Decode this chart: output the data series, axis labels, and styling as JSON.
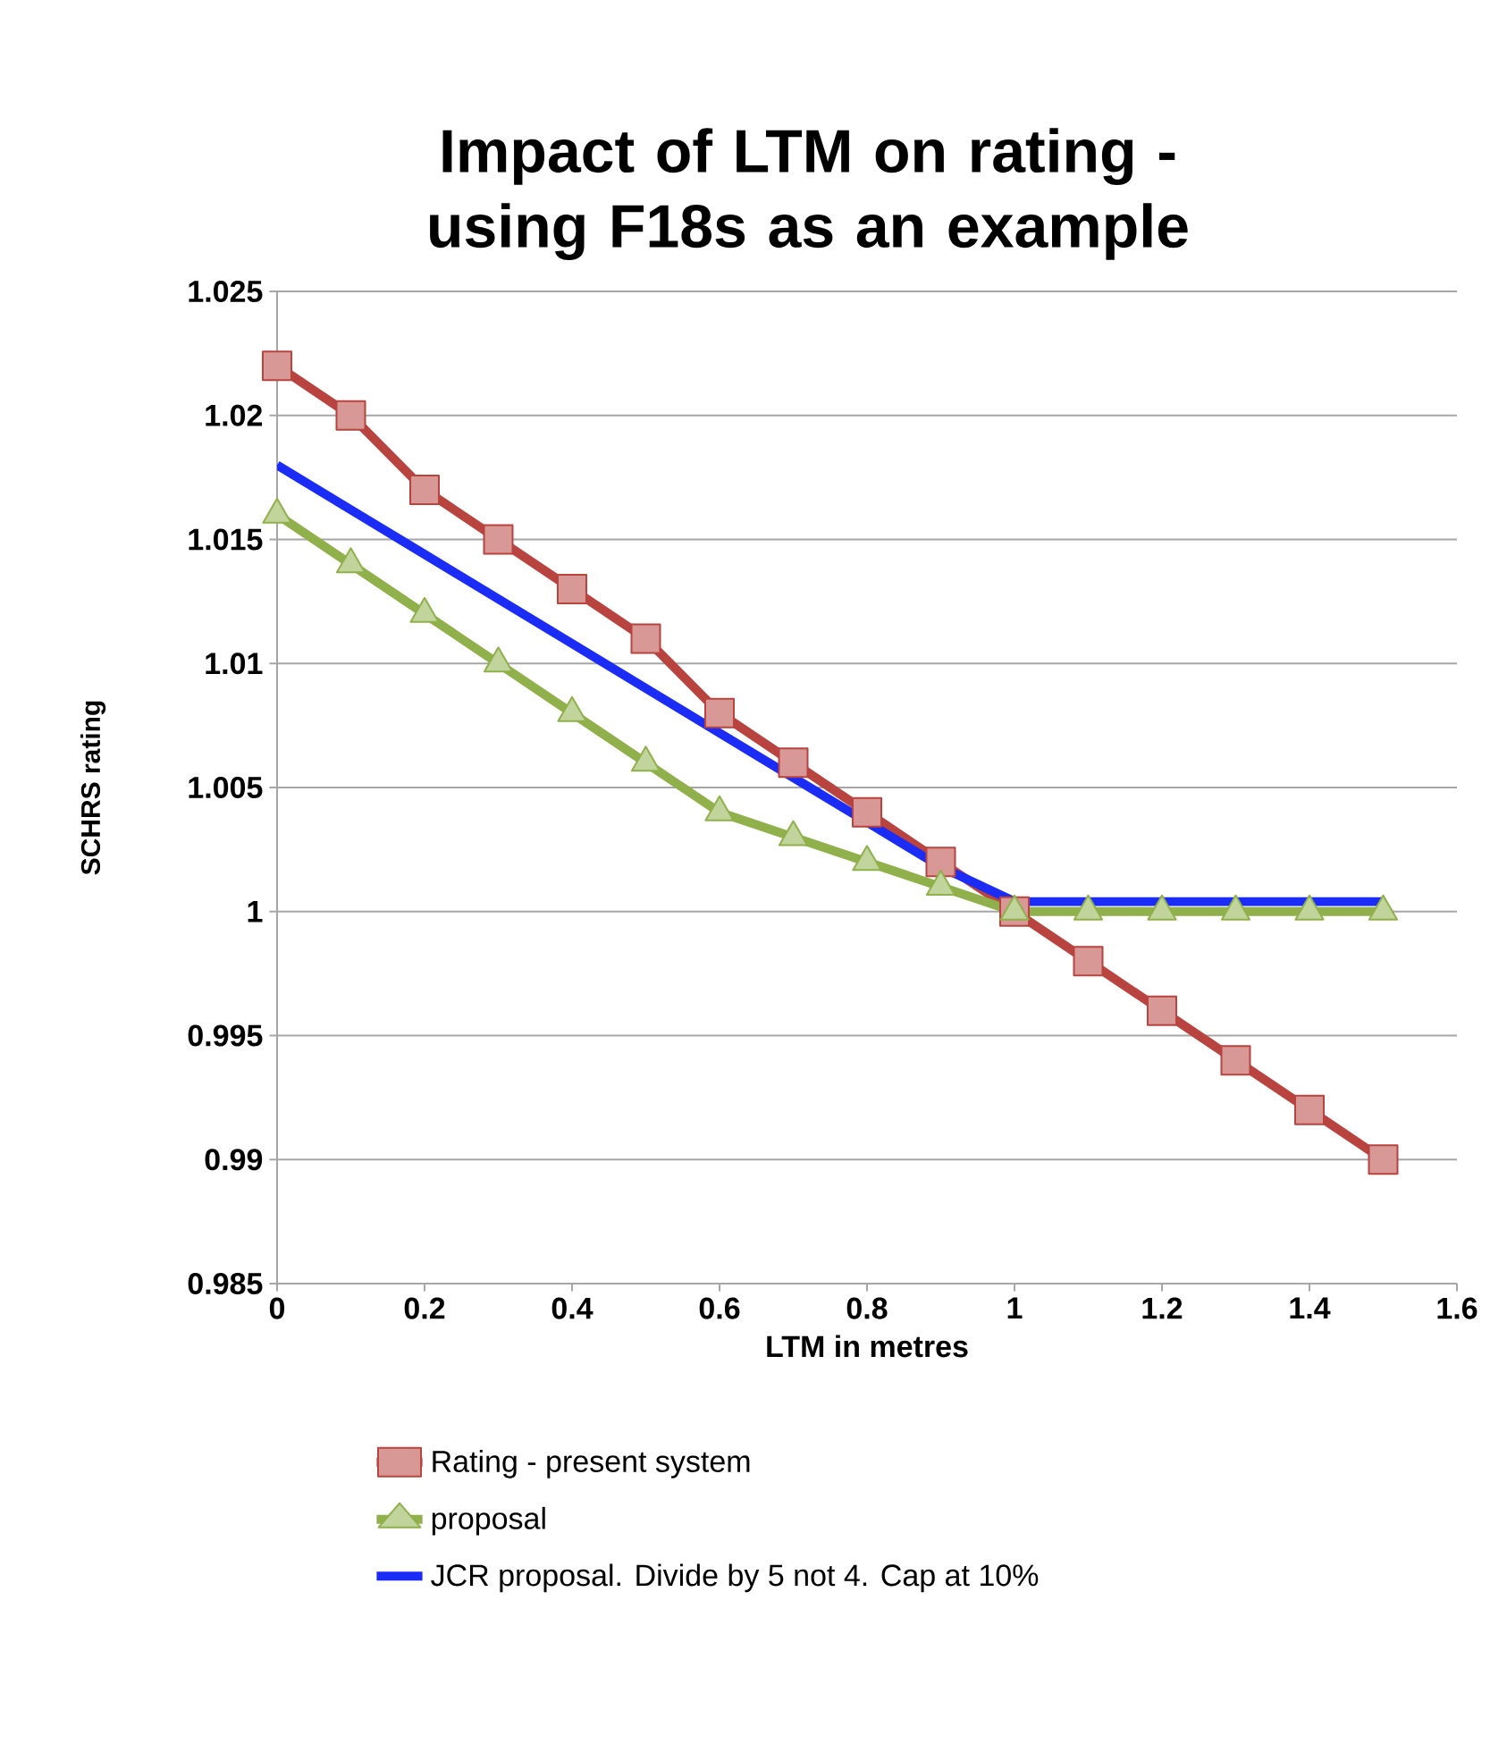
{
  "chart_data": {
    "type": "line",
    "title": "Impact of LTM on rating - using F18s as an example",
    "xlabel": "LTM in metres",
    "ylabel": "SCHRS rating",
    "x": [
      0,
      0.1,
      0.2,
      0.3,
      0.4,
      0.5,
      0.6,
      0.7,
      0.8,
      0.9,
      1.0,
      1.1,
      1.2,
      1.3,
      1.4,
      1.5
    ],
    "series": [
      {
        "name": "Rating - present system",
        "color": "#b8433f",
        "marker": "square",
        "values": [
          1.022,
          1.02,
          1.017,
          1.015,
          1.013,
          1.011,
          1.008,
          1.006,
          1.004,
          1.002,
          1.0,
          0.998,
          0.996,
          0.994,
          0.992,
          0.99
        ]
      },
      {
        "name": "proposal",
        "color": "#8fb04a",
        "marker": "triangle",
        "values": [
          1.016,
          1.014,
          1.012,
          1.01,
          1.008,
          1.006,
          1.004,
          1.003,
          1.002,
          1.001,
          1.0,
          1.0,
          1.0,
          1.0,
          1.0,
          1.0
        ]
      },
      {
        "name": "JCR proposal.  Divide by 5 not 4.  Cap at 10%",
        "color": "#1a2cf5",
        "marker": "none",
        "values": [
          1.018,
          1.0162,
          1.0144,
          1.0126,
          1.0108,
          1.009,
          1.0072,
          1.0054,
          1.0036,
          1.0018,
          1.0004,
          1.0004,
          1.0004,
          1.0004,
          1.0004,
          1.0004
        ]
      }
    ],
    "xlim": [
      0,
      1.6
    ],
    "xticks": [
      0,
      0.2,
      0.4,
      0.6,
      0.8,
      1,
      1.2,
      1.4,
      1.6
    ],
    "ylim": [
      0.985,
      1.025
    ],
    "yticks": [
      0.985,
      0.99,
      0.995,
      1,
      1.005,
      1.01,
      1.015,
      1.02,
      1.025
    ],
    "grid": "y",
    "legend": "bottom"
  }
}
